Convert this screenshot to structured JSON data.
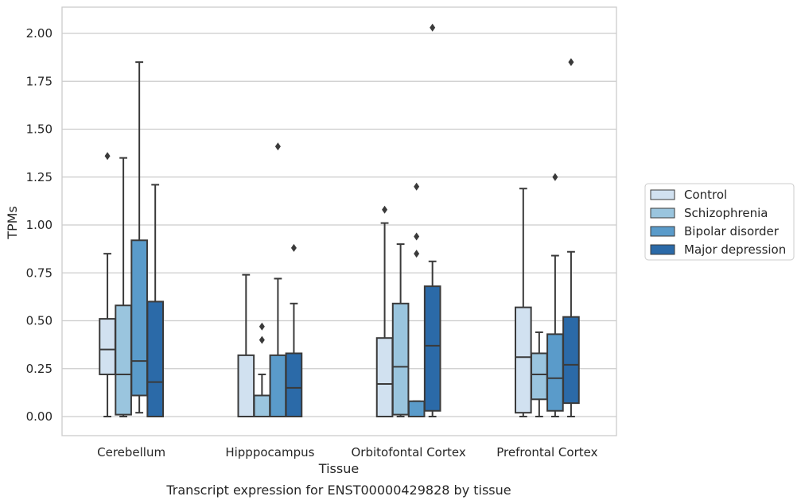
{
  "chart_data": {
    "type": "box",
    "title": "Transcript expression for ENST00000429828 by tissue",
    "xlabel": "Tissue",
    "ylabel": "TPMs",
    "ylim": [
      -0.1,
      2.13
    ],
    "yticks": [
      "0.00",
      "0.25",
      "0.50",
      "0.75",
      "1.00",
      "1.25",
      "1.50",
      "1.75",
      "2.00"
    ],
    "categories": [
      "Cerebellum",
      "Hipppocampus",
      "Orbitofontal Cortex",
      "Prefrontal Cortex"
    ],
    "grid": "horizontal",
    "legend_position": "right",
    "series": [
      {
        "name": "Control",
        "color": "#d1e1f0",
        "boxes": [
          {
            "whislo": 0.0,
            "q1": 0.22,
            "med": 0.35,
            "q3": 0.51,
            "whishi": 0.85,
            "fliers": [
              1.36
            ]
          },
          {
            "whislo": 0.0,
            "q1": 0.0,
            "med": 0.0,
            "q3": 0.32,
            "whishi": 0.74,
            "fliers": []
          },
          {
            "whislo": 0.0,
            "q1": 0.0,
            "med": 0.17,
            "q3": 0.41,
            "whishi": 1.01,
            "fliers": [
              1.08
            ]
          },
          {
            "whislo": 0.0,
            "q1": 0.02,
            "med": 0.31,
            "q3": 0.57,
            "whishi": 1.19,
            "fliers": []
          }
        ]
      },
      {
        "name": "Schizophrenia",
        "color": "#9ac5de",
        "boxes": [
          {
            "whislo": 0.0,
            "q1": 0.01,
            "med": 0.22,
            "q3": 0.58,
            "whishi": 1.35,
            "fliers": []
          },
          {
            "whislo": 0.0,
            "q1": 0.0,
            "med": 0.0,
            "q3": 0.11,
            "whishi": 0.22,
            "fliers": [
              0.4,
              0.47
            ]
          },
          {
            "whislo": 0.0,
            "q1": 0.01,
            "med": 0.26,
            "q3": 0.59,
            "whishi": 0.9,
            "fliers": []
          },
          {
            "whislo": 0.0,
            "q1": 0.09,
            "med": 0.22,
            "q3": 0.33,
            "whishi": 0.44,
            "fliers": []
          }
        ]
      },
      {
        "name": "Bipolar disorder",
        "color": "#5a9bca",
        "boxes": [
          {
            "whislo": 0.02,
            "q1": 0.11,
            "med": 0.29,
            "q3": 0.92,
            "whishi": 1.85,
            "fliers": []
          },
          {
            "whislo": 0.0,
            "q1": 0.0,
            "med": 0.0,
            "q3": 0.32,
            "whishi": 0.72,
            "fliers": [
              1.41
            ]
          },
          {
            "whislo": 0.0,
            "q1": 0.0,
            "med": 0.0,
            "q3": 0.08,
            "whishi": 0.08,
            "fliers": [
              0.85,
              0.94,
              1.2
            ]
          },
          {
            "whislo": 0.0,
            "q1": 0.03,
            "med": 0.2,
            "q3": 0.43,
            "whishi": 0.84,
            "fliers": [
              1.25
            ]
          }
        ]
      },
      {
        "name": "Major depression",
        "color": "#2b6aa8",
        "boxes": [
          {
            "whislo": 0.0,
            "q1": 0.0,
            "med": 0.18,
            "q3": 0.6,
            "whishi": 1.21,
            "fliers": []
          },
          {
            "whislo": 0.0,
            "q1": 0.0,
            "med": 0.15,
            "q3": 0.33,
            "whishi": 0.59,
            "fliers": [
              0.88
            ]
          },
          {
            "whislo": 0.0,
            "q1": 0.03,
            "med": 0.37,
            "q3": 0.68,
            "whishi": 0.81,
            "fliers": [
              2.03
            ]
          },
          {
            "whislo": 0.0,
            "q1": 0.07,
            "med": 0.27,
            "q3": 0.52,
            "whishi": 0.86,
            "fliers": [
              1.85
            ]
          }
        ]
      }
    ]
  }
}
